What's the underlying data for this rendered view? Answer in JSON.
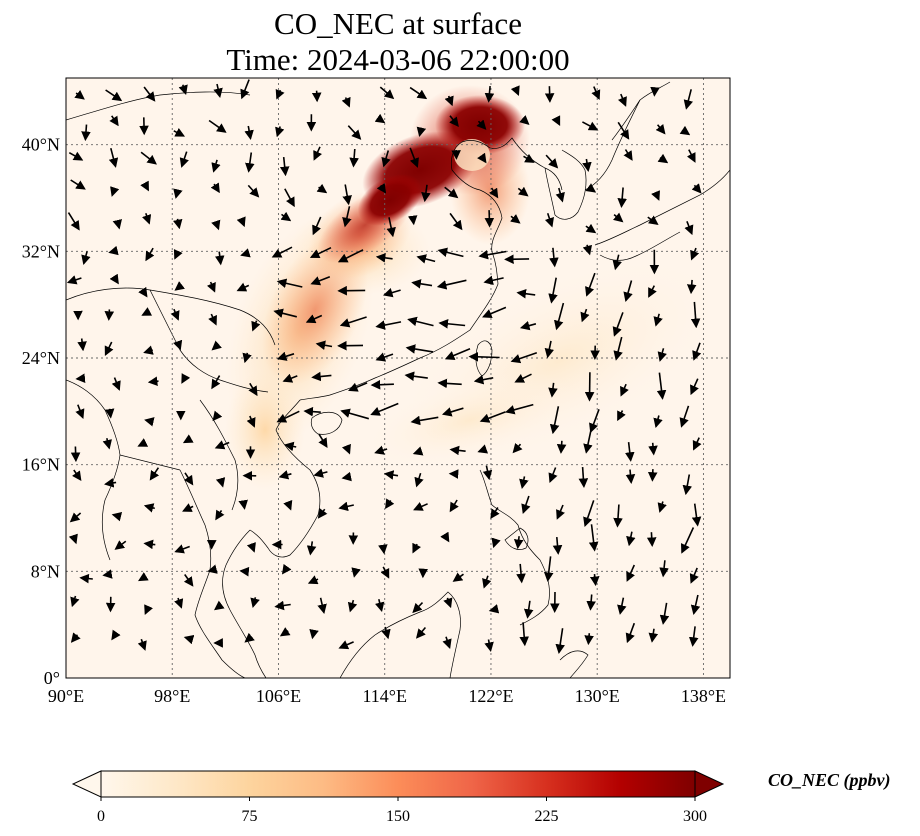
{
  "title": {
    "line1": "CO_NEC at surface",
    "line2": "Time: 2024-03-06 22:00:00"
  },
  "map": {
    "extent": {
      "lon": [
        90,
        140
      ],
      "lat": [
        0,
        45
      ]
    },
    "lat_ticks": [
      {
        "value": 0,
        "label": "0°"
      },
      {
        "value": 8,
        "label": "8°N"
      },
      {
        "value": 16,
        "label": "16°N"
      },
      {
        "value": 24,
        "label": "24°N"
      },
      {
        "value": 32,
        "label": "32°N"
      },
      {
        "value": 40,
        "label": "40°N"
      }
    ],
    "lon_ticks": [
      {
        "value": 90,
        "label": "90°E"
      },
      {
        "value": 98,
        "label": "98°E"
      },
      {
        "value": 106,
        "label": "106°E"
      },
      {
        "value": 114,
        "label": "114°E"
      },
      {
        "value": 122,
        "label": "122°E"
      },
      {
        "value": 130,
        "label": "130°E"
      },
      {
        "value": 138,
        "label": "138°E"
      }
    ],
    "gridlines": true,
    "background_color": "#fff5eb",
    "plume": [
      {
        "lon": 118,
        "lat": 39,
        "level": 300
      },
      {
        "lon": 121,
        "lat": 41,
        "level": 300
      },
      {
        "lon": 116,
        "lat": 36,
        "level": 260
      },
      {
        "lon": 112,
        "lat": 33,
        "level": 200
      },
      {
        "lon": 110,
        "lat": 28,
        "level": 140
      },
      {
        "lon": 108,
        "lat": 24,
        "level": 100
      },
      {
        "lon": 107,
        "lat": 18,
        "level": 60
      },
      {
        "lon": 126,
        "lat": 20,
        "level": 30
      }
    ]
  },
  "colorbar": {
    "title": "CO_NEC (ppbv)",
    "colormap": "OrRd",
    "min": 0,
    "max": 300,
    "extend": "both",
    "ticks": [
      "0",
      "75",
      "150",
      "225",
      "300"
    ],
    "colors": [
      "#fff7ec",
      "#fee8c8",
      "#fdd49e",
      "#fdbb84",
      "#fc8d59",
      "#ef6548",
      "#d7301f",
      "#b30000",
      "#7f0000"
    ]
  }
}
